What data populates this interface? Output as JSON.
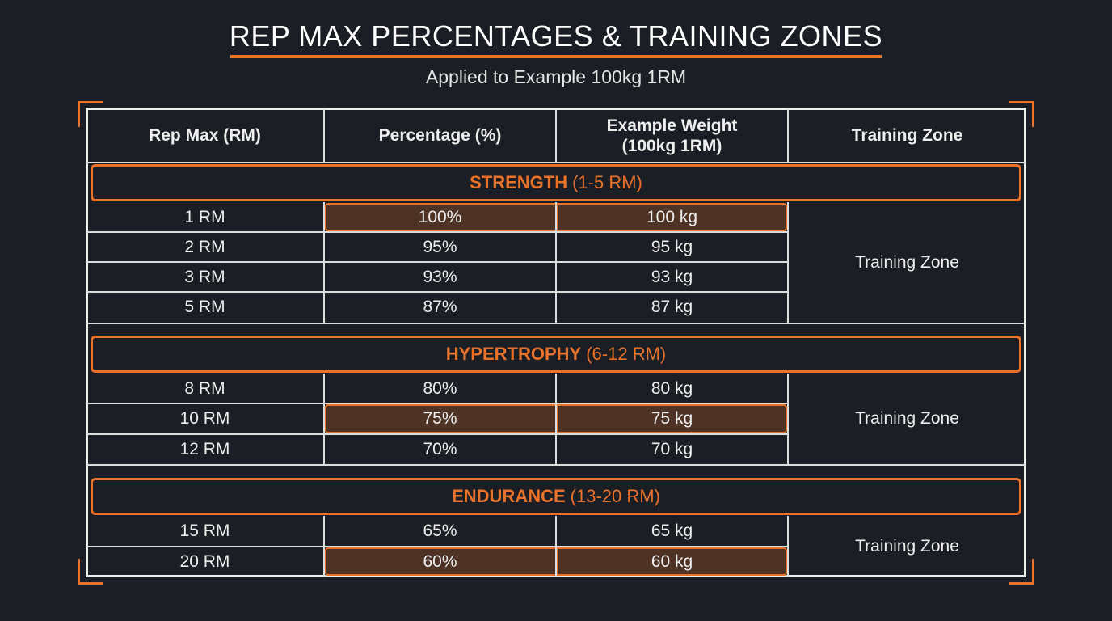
{
  "title": "REP MAX PERCENTAGES & TRAINING ZONES",
  "subtitle": "Applied to Example 100kg 1RM",
  "colors": {
    "accent": "#e8722a",
    "background": "#1b1e24",
    "highlight": "#4e3325"
  },
  "headers": [
    "Rep Max (RM)",
    "Percentage (%)",
    "Example Weight\n(100kg 1RM)",
    "Training Zone"
  ],
  "sections": [
    {
      "name": "STRENGTH",
      "range": "(1-5 RM)",
      "zone": "Training Zone",
      "rows": [
        {
          "rm": "1 RM",
          "pct": "100%",
          "weight": "100 kg",
          "highlighted": true
        },
        {
          "rm": "2 RM",
          "pct": "95%",
          "weight": "95 kg",
          "highlighted": false
        },
        {
          "rm": "3 RM",
          "pct": "93%",
          "weight": "93 kg",
          "highlighted": false
        },
        {
          "rm": "5 RM",
          "pct": "87%",
          "weight": "87 kg",
          "highlighted": false
        }
      ]
    },
    {
      "name": "HYPERTROPHY",
      "range": "(6-12 RM)",
      "zone": "Training Zone",
      "rows": [
        {
          "rm": "8 RM",
          "pct": "80%",
          "weight": "80 kg",
          "highlighted": false
        },
        {
          "rm": "10 RM",
          "pct": "75%",
          "weight": "75 kg",
          "highlighted": true
        },
        {
          "rm": "12 RM",
          "pct": "70%",
          "weight": "70 kg",
          "highlighted": false
        }
      ]
    },
    {
      "name": "ENDURANCE",
      "range": "(13-20 RM)",
      "zone": "Training Zone",
      "rows": [
        {
          "rm": "15 RM",
          "pct": "65%",
          "weight": "65 kg",
          "highlighted": false
        },
        {
          "rm": "20 RM",
          "pct": "60%",
          "weight": "60 kg",
          "highlighted": true
        }
      ]
    }
  ]
}
